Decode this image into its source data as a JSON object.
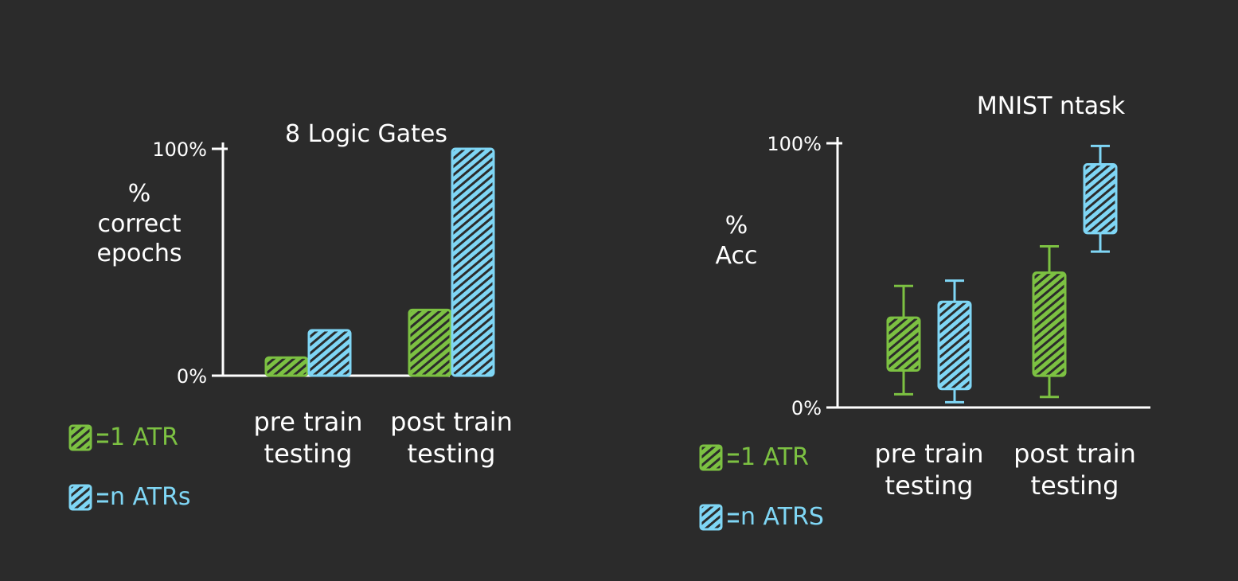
{
  "chart_data": [
    {
      "type": "bar",
      "title": "8 Logic Gates",
      "y_label": "%\ncorrect\nepochs",
      "categories": [
        "pre train\ntesting",
        "post train\ntesting"
      ],
      "series": [
        {
          "name": "1 ATR",
          "color": "#7cc142",
          "values": [
            8,
            29
          ]
        },
        {
          "name": "n ATRs",
          "color": "#7fd6f5",
          "values": [
            20,
            100
          ]
        }
      ],
      "ylim": [
        0,
        100
      ],
      "yticks": [
        {
          "value": 0,
          "label": "0%"
        },
        {
          "value": 100,
          "label": "100%"
        }
      ]
    },
    {
      "type": "box",
      "title": "MNIST ntask",
      "y_label": "%\nAcc",
      "categories": [
        "pre train\ntesting",
        "post train\ntesting"
      ],
      "series": [
        {
          "name": "1 ATR",
          "color": "#7cc142",
          "min": [
            5,
            4
          ],
          "q1": [
            14,
            12
          ],
          "q3": [
            34,
            51
          ],
          "max": [
            46,
            61
          ]
        },
        {
          "name": "n ATRS",
          "color": "#7fd6f5",
          "min": [
            2,
            59
          ],
          "q1": [
            7,
            66
          ],
          "q3": [
            40,
            92
          ],
          "max": [
            48,
            99
          ]
        }
      ],
      "ylim": [
        0,
        100
      ],
      "yticks": [
        {
          "value": 0,
          "label": "0%"
        },
        {
          "value": 100,
          "label": "100%"
        }
      ]
    }
  ]
}
